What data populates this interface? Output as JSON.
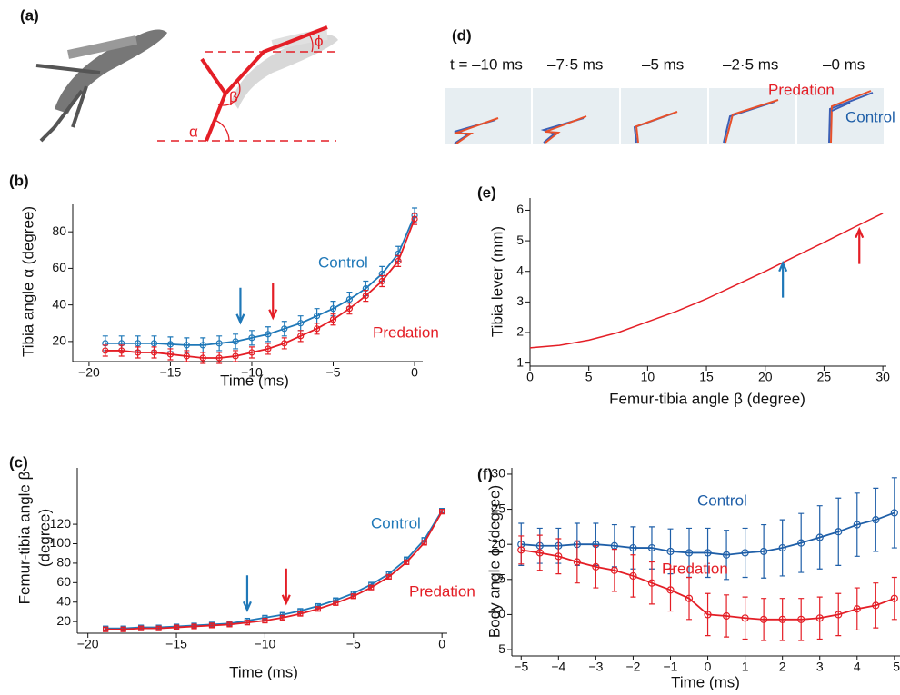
{
  "images": [
    {
      "label": "(a)",
      "angles": [
        "α",
        "β",
        "ϕ"
      ]
    },
    {
      "label": "(d)",
      "times": [
        "t = –10 ms",
        "–7·5 ms",
        "–5 ms",
        "–2·5 ms",
        "–0 ms"
      ],
      "labels": [
        "Predation",
        "Control"
      ]
    }
  ],
  "chart_data": [
    {
      "type": "line",
      "label": "(b)",
      "xlabel": "Time (ms)",
      "ylabel": "Tibia angle α (degree)",
      "x": [
        -19,
        -18,
        -17,
        -16,
        -15,
        -14,
        -13,
        -12,
        -11,
        -10,
        -9,
        -8,
        -7,
        -6,
        -5,
        -4,
        -3,
        -2,
        -1,
        0
      ],
      "series": [
        {
          "name": "Control",
          "color": "#1f78b8",
          "marker": "circle",
          "values": [
            19,
            19,
            19,
            19,
            18.5,
            18,
            18,
            19,
            20,
            22,
            24,
            27,
            30,
            34,
            38,
            43,
            49,
            57,
            68,
            89
          ],
          "errors": [
            4,
            4,
            4,
            4,
            4,
            4,
            4,
            4,
            4,
            4,
            4,
            4,
            4,
            4,
            4,
            4,
            4,
            4,
            4,
            4
          ]
        },
        {
          "name": "Predation",
          "color": "#e41e26",
          "marker": "circle",
          "values": [
            15,
            15,
            14,
            14,
            13,
            12,
            11,
            11,
            12,
            14,
            16,
            19,
            23,
            27,
            32,
            38,
            45,
            53,
            64,
            87
          ],
          "errors": [
            3,
            3,
            3,
            3,
            3,
            3,
            3,
            3,
            3,
            3,
            3,
            3,
            3,
            3,
            3,
            3,
            3,
            3,
            3,
            3
          ]
        }
      ],
      "xlim": [
        -21,
        0.5
      ],
      "ylim": [
        9,
        95
      ],
      "xticks": [
        {
          "value": -20,
          "label": "−20"
        },
        {
          "value": -15,
          "label": "−15"
        },
        {
          "value": -10,
          "label": "−10"
        },
        {
          "value": -5,
          "label": "−5"
        },
        0
      ],
      "yticks": [
        20,
        40,
        60,
        80
      ],
      "arrows": [
        {
          "x": -10.7,
          "y": 30.5,
          "color": "#1f78b8",
          "direction": "down"
        },
        {
          "x": -8.7,
          "y": 33,
          "color": "#e41e26",
          "direction": "down"
        }
      ]
    },
    {
      "type": "line",
      "label": "(c)",
      "xlabel": "Time (ms)",
      "ylabel": [
        "Femur-tibia angle β",
        "(degree)"
      ],
      "x": [
        -19,
        -18,
        -17,
        -16,
        -15,
        -14,
        -13,
        -12,
        -11,
        -10,
        -9,
        -8,
        -7,
        -6,
        -5,
        -4,
        -3,
        -2,
        -1,
        0
      ],
      "series": [
        {
          "name": "Control",
          "color": "#1f78b8",
          "marker": "square",
          "values": [
            13,
            13,
            14,
            14,
            15,
            16,
            17,
            18,
            21,
            24,
            27,
            31,
            36,
            42,
            49,
            58,
            69,
            84,
            104,
            134
          ],
          "errors": [
            2,
            2,
            2,
            2,
            2,
            2,
            2,
            2,
            2,
            2,
            2,
            2,
            2,
            2,
            2,
            2,
            2,
            2,
            2,
            2
          ]
        },
        {
          "name": "Predation",
          "color": "#e41e26",
          "marker": "square",
          "values": [
            12,
            12,
            13,
            13,
            14,
            15,
            16,
            17,
            19,
            21,
            24,
            28,
            33,
            39,
            46,
            55,
            66,
            81,
            101,
            133
          ],
          "errors": [
            2,
            2,
            2,
            2,
            2,
            2,
            2,
            2,
            2,
            2,
            2,
            2,
            2,
            2,
            2,
            2,
            2,
            2,
            2,
            2
          ]
        }
      ],
      "xlim": [
        -20.6,
        0.3
      ],
      "ylim": [
        8,
        178
      ],
      "xticks": [
        {
          "value": -20,
          "label": "−20"
        },
        {
          "value": -15,
          "label": "−15"
        },
        {
          "value": -10,
          "label": "−10"
        },
        {
          "value": -5,
          "label": "−5"
        },
        0
      ],
      "yticks": [
        20,
        40,
        60,
        80,
        100,
        120
      ],
      "arrows": [
        {
          "x": -11,
          "y": 32,
          "color": "#1f78b8",
          "direction": "down"
        },
        {
          "x": -8.8,
          "y": 39,
          "color": "#e41e26",
          "direction": "down"
        }
      ]
    },
    {
      "type": "line",
      "label": "(e)",
      "xlabel": "Femur-tibia angle β (degree)",
      "ylabel": "Tibia lever (mm)",
      "x": [
        0,
        2.5,
        5,
        7.5,
        10,
        12.5,
        15,
        17.5,
        20,
        22.5,
        25,
        27.5,
        30
      ],
      "values": [
        1.5,
        1.58,
        1.75,
        2.0,
        2.35,
        2.7,
        3.1,
        3.55,
        4.0,
        4.48,
        4.95,
        5.43,
        5.9
      ],
      "color": "#e41e26",
      "xlim": [
        0,
        30.3
      ],
      "ylim": [
        0.9,
        6.4
      ],
      "xticks": [
        0,
        5,
        10,
        15,
        20,
        25,
        30
      ],
      "yticks": [
        1,
        2,
        3,
        4,
        5,
        6
      ],
      "arrows": [
        {
          "x": 21.5,
          "y": 4.27,
          "color": "#1f78b8",
          "direction": "up"
        },
        {
          "x": 28,
          "y": 5.37,
          "color": "#e41e26",
          "direction": "up"
        }
      ]
    },
    {
      "type": "line",
      "label": "(f)",
      "xlabel": "Time (ms)",
      "ylabel": "Body angle ϕ (degree)",
      "x": [
        -5,
        -4.5,
        -4,
        -3.5,
        -3,
        -2.5,
        -2,
        -1.5,
        -1,
        -0.5,
        0,
        0.5,
        1,
        1.5,
        2,
        2.5,
        3,
        3.5,
        4,
        4.5,
        5
      ],
      "series": [
        {
          "name": "Control",
          "color": "#1f5fa8",
          "marker": "circle",
          "values": [
            20,
            19.8,
            19.8,
            20,
            20,
            19.8,
            19.5,
            19.5,
            19,
            18.8,
            18.8,
            18.5,
            18.8,
            19,
            19.5,
            20.2,
            21,
            21.8,
            22.8,
            23.5,
            24.5
          ],
          "errors": [
            3,
            2.5,
            2.5,
            3,
            3,
            3,
            3,
            3,
            3.2,
            3.5,
            3.5,
            3.5,
            3.5,
            3.8,
            4,
            4.2,
            4.5,
            4.8,
            4.5,
            4.5,
            5
          ]
        },
        {
          "name": "Predation",
          "color": "#e41e26",
          "marker": "circle",
          "values": [
            19.2,
            18.8,
            18.3,
            17.5,
            16.8,
            16.3,
            15.5,
            14.5,
            13.5,
            12.3,
            10,
            9.8,
            9.5,
            9.3,
            9.3,
            9.3,
            9.5,
            10,
            10.8,
            11.3,
            12.3
          ],
          "errors": [
            2,
            2.5,
            2.5,
            3,
            3,
            3,
            3,
            3,
            3,
            3,
            3,
            3,
            3,
            3,
            3,
            3,
            3,
            3,
            3,
            3.2,
            3
          ]
        }
      ],
      "xlim": [
        -5.25,
        5.15
      ],
      "ylim": [
        4.1,
        30.9
      ],
      "xticks": [
        {
          "value": -5,
          "label": "−5"
        },
        {
          "value": -4,
          "label": "−4"
        },
        {
          "value": -3,
          "label": "−3"
        },
        {
          "value": -2,
          "label": "−2"
        },
        {
          "value": -1,
          "label": "−1"
        },
        0,
        1,
        2,
        3,
        4,
        5
      ],
      "yticks": [
        5,
        10,
        15,
        20,
        25,
        30
      ]
    }
  ]
}
